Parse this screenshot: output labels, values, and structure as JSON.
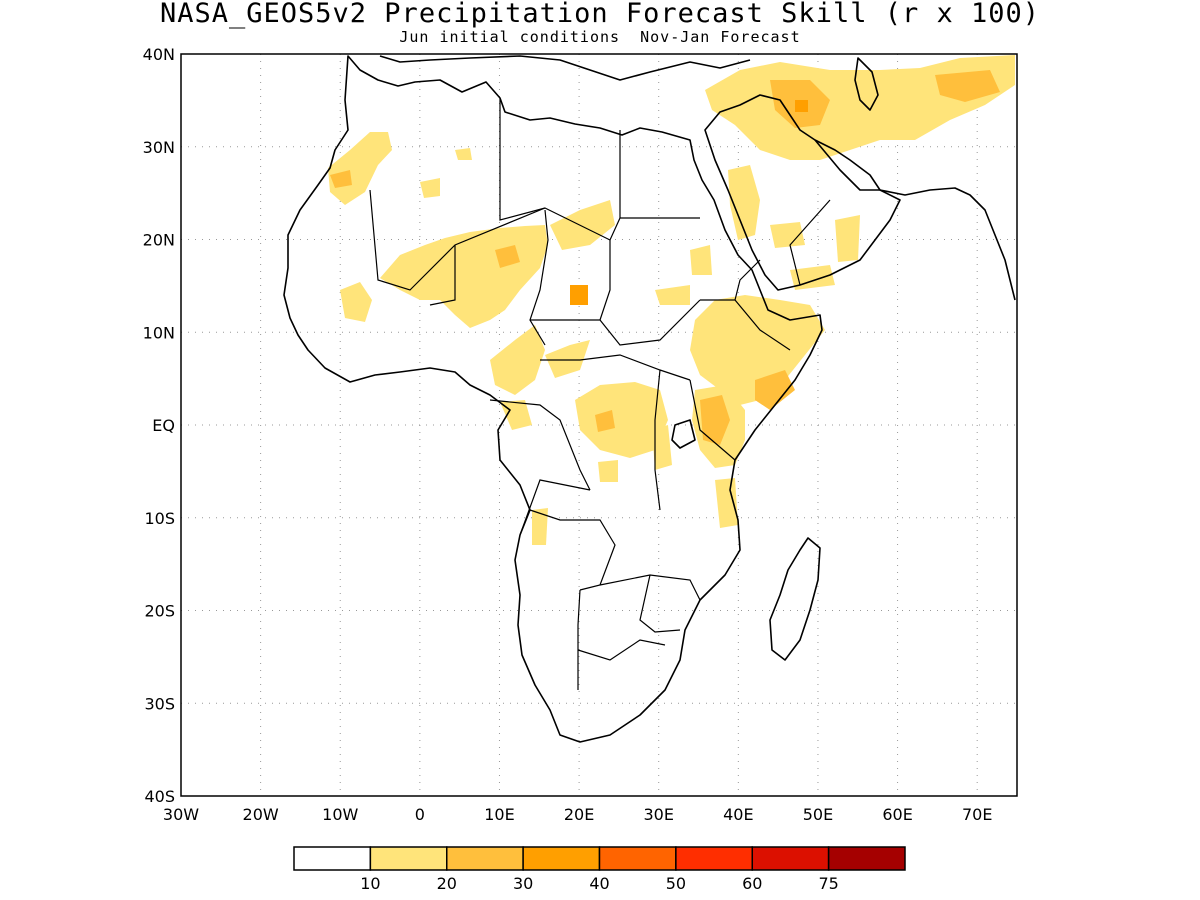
{
  "title": "NASA_GEOS5v2 Precipitation Forecast Skill (r x 100)",
  "subtitle": "Jun initial conditions  Nov-Jan Forecast",
  "map": {
    "lon_range": [
      -30,
      75
    ],
    "lat_range": [
      -40,
      40
    ],
    "lat_labels": [
      "40N",
      "30N",
      "20N",
      "10N",
      "EQ",
      "10S",
      "20S",
      "30S",
      "40S"
    ],
    "lon_labels": [
      "30W",
      "20W",
      "10W",
      "0",
      "10E",
      "20E",
      "30E",
      "40E",
      "50E",
      "60E",
      "70E"
    ],
    "gridlines": "dotted",
    "region": "Africa and Middle East"
  },
  "legend": {
    "labels": [
      "10",
      "20",
      "30",
      "40",
      "50",
      "60",
      "75"
    ],
    "colors": [
      "#ffffff",
      "#ffe47a",
      "#ffbf3c",
      "#ff9f00",
      "#ff6400",
      "#ff2e00",
      "#dc1000",
      "#a50000"
    ]
  }
}
